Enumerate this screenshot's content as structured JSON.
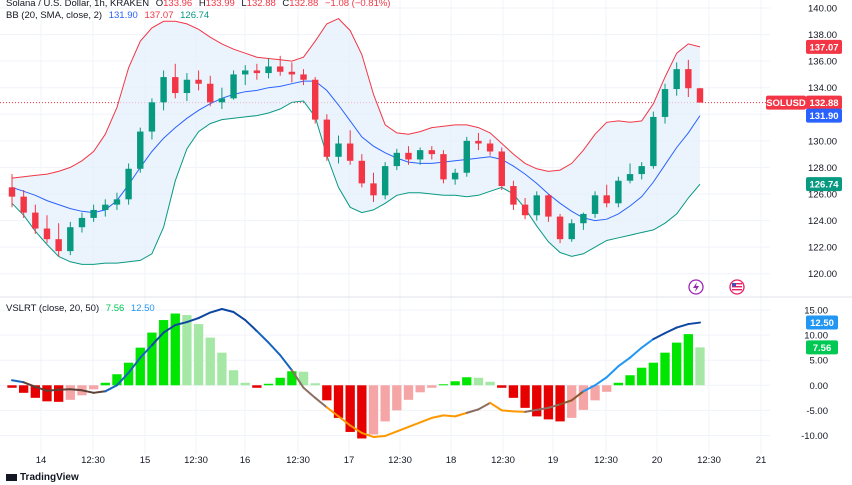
{
  "header": {
    "symbol": "Solana / U.S. Dollar, 1h, KRAKEN",
    "o_label": "O",
    "o": "133.96",
    "h_label": "H",
    "h": "133.99",
    "l_label": "L",
    "l": "132.88",
    "c_label": "C",
    "c": "132.88",
    "change": "−1.08 (−0.81%)"
  },
  "bb_legend": {
    "label": "BB (20, SMA, close, 2)",
    "basis": "131.90",
    "upper": "137.07",
    "lower": "126.74"
  },
  "vslrt_legend": {
    "label": "VSLRT (close, 20, 50)",
    "v1": "7.56",
    "v2": "12.50"
  },
  "price_badges": {
    "upper": "137.07",
    "symbol": "SOLUSD",
    "last": "132.88",
    "basis": "131.90",
    "lower": "126.74"
  },
  "osc_badges": {
    "a": "12.50",
    "b": "7.56"
  },
  "branding": "TradingView",
  "colors": {
    "up": "#26a69a",
    "down": "#ef5350",
    "candle_up": "#089981",
    "candle_down": "#f23645",
    "bb_upper": "#f23645",
    "bb_basis": "#2962ff",
    "bb_lower": "#089981",
    "bb_fill": "#e3f0fc",
    "hist_up_strong": "#00e600",
    "hist_up_weak": "#a5e8a5",
    "hist_down_strong": "#e60000",
    "hist_down_weak": "#f5a5a5",
    "osc_line": "#2196f3"
  },
  "chart_data": [
    {
      "type": "candlestick",
      "title": "Solana / U.S. Dollar, 1h, KRAKEN",
      "ylim": [
        119,
        140
      ],
      "y_ticks": [
        120.0,
        122.0,
        124.0,
        126.0,
        128.0,
        130.0,
        132.0,
        134.0,
        136.0,
        138.0,
        140.0
      ],
      "x_ticks": [
        "14",
        "12:30",
        "15",
        "12:30",
        "16",
        "12:30",
        "17",
        "12:30",
        "18",
        "12:30",
        "19",
        "12:30",
        "20",
        "12:30",
        "21"
      ],
      "series": [
        {
          "name": "BB upper",
          "values": [
            127.2,
            127.3,
            127.4,
            127.5,
            127.7,
            128.0,
            128.5,
            129.2,
            130.5,
            132.5,
            135.5,
            137.5,
            138.5,
            139.0,
            139.0,
            138.8,
            138.4,
            137.8,
            137.3,
            136.9,
            136.6,
            136.3,
            136.2,
            136.1,
            136.0,
            136.3,
            137.5,
            138.8,
            139.2,
            138.3,
            136.5,
            133.5,
            131.2,
            130.6,
            130.5,
            130.7,
            131.0,
            131.1,
            131.2,
            131.2,
            131.0,
            130.6,
            129.8,
            129.0,
            128.3,
            127.9,
            127.7,
            127.8,
            128.3,
            129.3,
            130.5,
            131.4,
            131.5,
            131.4,
            131.5,
            132.8,
            134.8,
            136.6,
            137.3,
            137.07
          ]
        },
        {
          "name": "BB basis",
          "values": [
            126.5,
            126.2,
            125.9,
            125.5,
            125.2,
            124.9,
            124.7,
            124.6,
            124.8,
            125.5,
            126.7,
            128.0,
            129.2,
            130.2,
            131.0,
            131.7,
            132.3,
            132.8,
            133.2,
            133.5,
            133.7,
            133.8,
            134.0,
            134.1,
            134.3,
            134.5,
            134.5,
            133.8,
            132.7,
            131.5,
            130.3,
            129.6,
            129.1,
            128.7,
            128.4,
            128.3,
            128.3,
            128.4,
            128.5,
            128.6,
            128.7,
            128.8,
            128.6,
            128.1,
            127.5,
            126.8,
            126.0,
            125.3,
            124.7,
            124.2,
            124.0,
            124.1,
            124.5,
            125.1,
            125.8,
            126.9,
            128.2,
            129.5,
            130.6,
            131.9
          ]
        },
        {
          "name": "BB lower",
          "values": [
            125.3,
            124.4,
            123.2,
            122.2,
            121.3,
            120.9,
            120.7,
            120.7,
            120.8,
            120.8,
            120.9,
            121.0,
            121.5,
            123.5,
            127.0,
            129.4,
            130.7,
            131.3,
            131.6,
            131.7,
            131.8,
            131.9,
            132.1,
            132.4,
            132.9,
            133.0,
            131.8,
            128.9,
            126.5,
            125.0,
            124.6,
            124.8,
            125.3,
            125.9,
            126.1,
            126.1,
            126.0,
            125.9,
            125.9,
            125.8,
            125.9,
            126.2,
            126.5,
            126.0,
            124.9,
            123.6,
            122.4,
            121.6,
            121.3,
            121.5,
            122.0,
            122.5,
            122.7,
            122.9,
            123.1,
            123.3,
            123.8,
            124.5,
            125.7,
            126.74
          ]
        }
      ],
      "candles": [
        [
          126.5,
          127.5,
          125.0,
          125.8
        ],
        [
          125.8,
          126.3,
          124.2,
          124.6
        ],
        [
          124.6,
          125.2,
          123.0,
          123.4
        ],
        [
          123.4,
          124.4,
          122.3,
          122.6
        ],
        [
          122.6,
          123.8,
          121.3,
          121.7
        ],
        [
          121.7,
          123.9,
          121.4,
          123.5
        ],
        [
          123.5,
          124.6,
          123.1,
          124.2
        ],
        [
          124.2,
          125.2,
          123.9,
          124.8
        ],
        [
          124.8,
          125.6,
          124.3,
          125.2
        ],
        [
          125.2,
          126.1,
          124.8,
          125.6
        ],
        [
          125.6,
          128.3,
          125.2,
          127.9
        ],
        [
          127.9,
          131.0,
          127.6,
          130.7
        ],
        [
          130.7,
          133.2,
          130.1,
          132.9
        ],
        [
          132.9,
          135.3,
          132.3,
          134.8
        ],
        [
          134.8,
          135.8,
          133.2,
          133.6
        ],
        [
          133.6,
          135.1,
          133.0,
          134.6
        ],
        [
          134.6,
          135.3,
          133.8,
          134.3
        ],
        [
          134.3,
          134.9,
          132.6,
          132.9
        ],
        [
          132.9,
          134.0,
          132.4,
          133.2
        ],
        [
          133.2,
          135.3,
          133.1,
          135.0
        ],
        [
          135.0,
          135.7,
          134.2,
          135.3
        ],
        [
          135.3,
          135.8,
          134.6,
          135.1
        ],
        [
          135.1,
          136.2,
          134.7,
          135.6
        ],
        [
          135.6,
          136.4,
          134.9,
          135.2
        ],
        [
          135.2,
          135.9,
          134.4,
          135.0
        ],
        [
          135.0,
          135.4,
          134.2,
          134.6
        ],
        [
          134.6,
          134.8,
          131.3,
          131.6
        ],
        [
          131.6,
          132.0,
          128.5,
          128.8
        ],
        [
          128.8,
          130.4,
          128.3,
          129.8
        ],
        [
          129.8,
          130.8,
          128.2,
          128.5
        ],
        [
          128.5,
          129.0,
          126.5,
          126.8
        ],
        [
          126.8,
          127.6,
          125.4,
          125.9
        ],
        [
          125.9,
          128.4,
          125.6,
          128.1
        ],
        [
          128.1,
          129.4,
          127.8,
          129.1
        ],
        [
          129.1,
          129.6,
          128.2,
          128.6
        ],
        [
          128.6,
          129.5,
          128.2,
          129.3
        ],
        [
          129.3,
          129.6,
          128.6,
          129.0
        ],
        [
          129.0,
          129.3,
          126.8,
          127.1
        ],
        [
          127.1,
          127.9,
          126.7,
          127.6
        ],
        [
          127.6,
          130.3,
          127.3,
          130.0
        ],
        [
          130.0,
          130.6,
          129.3,
          129.8
        ],
        [
          129.8,
          130.1,
          128.9,
          129.2
        ],
        [
          129.2,
          129.5,
          126.3,
          126.6
        ],
        [
          126.6,
          127.0,
          124.8,
          125.2
        ],
        [
          125.2,
          125.7,
          124.1,
          124.4
        ],
        [
          124.4,
          126.2,
          124.0,
          125.9
        ],
        [
          125.9,
          126.0,
          123.9,
          124.3
        ],
        [
          124.3,
          124.5,
          122.3,
          122.6
        ],
        [
          122.6,
          124.1,
          122.4,
          123.8
        ],
        [
          123.8,
          124.6,
          123.3,
          124.5
        ],
        [
          124.5,
          126.2,
          124.2,
          125.9
        ],
        [
          125.9,
          126.7,
          125.0,
          125.3
        ],
        [
          125.3,
          127.3,
          125.0,
          127.0
        ],
        [
          127.0,
          128.3,
          126.8,
          127.5
        ],
        [
          127.5,
          128.4,
          127.1,
          128.1
        ],
        [
          128.1,
          132.2,
          127.9,
          131.8
        ],
        [
          131.8,
          134.3,
          131.3,
          133.9
        ],
        [
          133.9,
          135.9,
          133.4,
          135.4
        ],
        [
          135.4,
          136.1,
          133.3,
          133.96
        ],
        [
          133.96,
          133.99,
          132.88,
          132.88
        ]
      ]
    },
    {
      "type": "bar",
      "title": "VSLRT (close, 20, 50)",
      "ylim": [
        -12.5,
        16
      ],
      "y_ticks": [
        15.0,
        10.0,
        5.0,
        0.0,
        -5.0,
        -10.0
      ],
      "series": [
        {
          "name": "histogram",
          "values": [
            -0.5,
            -1.5,
            -2.5,
            -3.2,
            -3.3,
            -2.9,
            -2.0,
            -0.8,
            0.5,
            2.2,
            4.5,
            7.5,
            10.5,
            13.0,
            14.3,
            14.0,
            12.2,
            9.5,
            6.5,
            3.0,
            0.5,
            -0.5,
            0.3,
            1.5,
            2.8,
            2.7,
            0.4,
            -3.0,
            -6.5,
            -9.3,
            -10.6,
            -9.8,
            -7.2,
            -5.0,
            -2.9,
            -1.4,
            -0.5,
            0.2,
            0.8,
            1.6,
            1.5,
            0.7,
            -0.5,
            -2.5,
            -4.5,
            -6.2,
            -6.8,
            -7.2,
            -6.5,
            -4.9,
            -3.0,
            -1.3,
            0.5,
            2.0,
            3.5,
            4.5,
            6.5,
            8.5,
            10.2,
            7.56
          ]
        },
        {
          "name": "line",
          "values": [
            1.0,
            0.6,
            -0.3,
            -1.1,
            -0.9,
            -0.8,
            -1.0,
            -1.5,
            -1.2,
            0.0,
            2.5,
            5.5,
            8.0,
            10.5,
            12.0,
            12.6,
            13.4,
            14.5,
            15.2,
            14.6,
            13.0,
            10.8,
            8.5,
            6.0,
            3.0,
            -0.5,
            -2.5,
            -4.4,
            -6.2,
            -8.0,
            -9.5,
            -10.3,
            -10.1,
            -9.2,
            -8.3,
            -7.4,
            -6.5,
            -6.0,
            -6.2,
            -5.5,
            -4.8,
            -3.5,
            -5.0,
            -5.2,
            -5.3,
            -4.9,
            -4.5,
            -3.8,
            -3.0,
            -1.2,
            0.0,
            1.6,
            3.8,
            5.5,
            7.5,
            9.2,
            10.4,
            11.5,
            12.2,
            12.5
          ]
        }
      ]
    }
  ]
}
